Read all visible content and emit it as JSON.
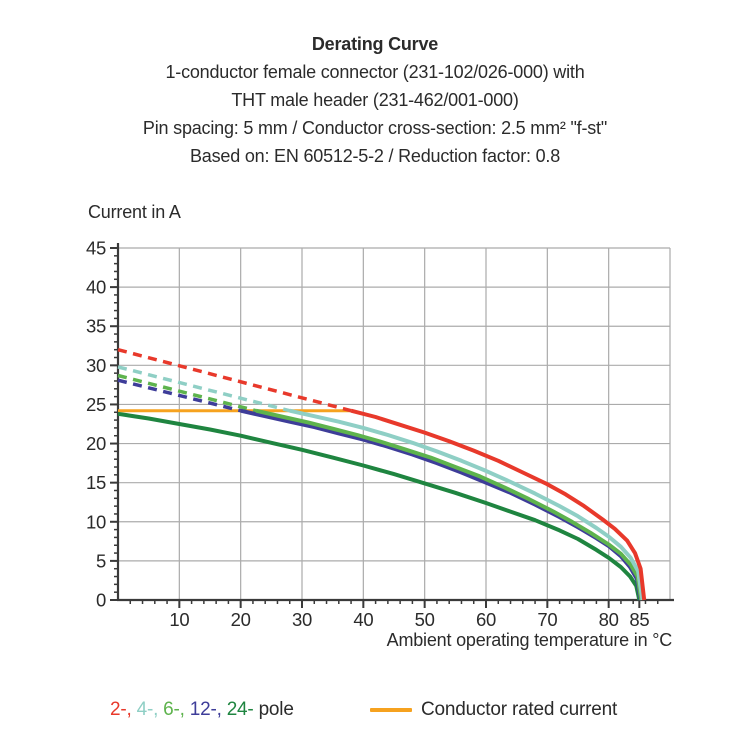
{
  "title": {
    "heading": "Derating Curve",
    "lines": [
      "1-conductor female connector (231-102/026-000) with",
      "THT male header (231-462/001-000)",
      "Pin spacing: 5 mm / Conductor cross-section: 2.5 mm² \"f-st\"",
      "Based on: EN 60512-5-2 / Reduction factor: 0.8"
    ]
  },
  "colors": {
    "red_2pole": "#e8392b",
    "cyan_4pole": "#8fcfc5",
    "lightgreen_6pole": "#5eb34d",
    "darkblue_12pole": "#3e3d99",
    "darkgreen_24pole": "#1f8540",
    "orange_rated": "#f6a21f",
    "grid": "#ababab",
    "axis": "#3a3a3a",
    "text": "#2b2b2b"
  },
  "chart_data": {
    "type": "line",
    "title": "Derating Curve",
    "xlabel": "Ambient operating temperature in °C",
    "ylabel": "Current in A",
    "xlim": [
      0,
      90
    ],
    "ylim": [
      0,
      45
    ],
    "grid": true,
    "x_gridlines": [
      10,
      20,
      30,
      40,
      50,
      60,
      70,
      80,
      90
    ],
    "y_gridlines": [
      5,
      10,
      15,
      20,
      25,
      30,
      35,
      40,
      45
    ],
    "x_major_ticks": [
      10,
      20,
      30,
      40,
      50,
      60,
      70,
      80,
      85
    ],
    "y_major_ticks": [
      0,
      5,
      10,
      15,
      20,
      25,
      30,
      35,
      40,
      45
    ],
    "x_minor_step": 2,
    "y_minor_step": 1,
    "series": [
      {
        "id": "rated-current",
        "name": "Conductor rated current",
        "color": "#f6a21f",
        "style": "solid",
        "width": 3,
        "points": [
          [
            0,
            24.2
          ],
          [
            38,
            24.2
          ]
        ]
      },
      {
        "id": "pole2-dashed",
        "name": "2-pole above rated current",
        "color": "#e8392b",
        "style": "dashed",
        "width": 3.5,
        "points": [
          [
            0,
            32
          ],
          [
            38,
            24.2
          ]
        ]
      },
      {
        "id": "pole4-dashed",
        "name": "4-pole above rated current",
        "color": "#8fcfc5",
        "style": "dashed",
        "width": 3.5,
        "points": [
          [
            0,
            29.8
          ],
          [
            28,
            24.2
          ]
        ]
      },
      {
        "id": "pole6-dashed",
        "name": "6-pole above rated current",
        "color": "#5eb34d",
        "style": "dashed",
        "width": 3.5,
        "points": [
          [
            0,
            28.7
          ],
          [
            22.5,
            24.2
          ]
        ]
      },
      {
        "id": "pole12-dashed",
        "name": "12-pole above rated current",
        "color": "#3e3d99",
        "style": "dashed",
        "width": 3.5,
        "points": [
          [
            0,
            28.1
          ],
          [
            20,
            24.2
          ]
        ]
      },
      {
        "id": "pole24",
        "name": "24-pole",
        "color": "#1f8540",
        "style": "solid",
        "width": 4,
        "points": [
          [
            0,
            23.8
          ],
          [
            5,
            23.2
          ],
          [
            10,
            22.5
          ],
          [
            15,
            21.8
          ],
          [
            20,
            21.0
          ],
          [
            25,
            20.1
          ],
          [
            30,
            19.2
          ],
          [
            35,
            18.2
          ],
          [
            40,
            17.2
          ],
          [
            45,
            16.1
          ],
          [
            50,
            14.9
          ],
          [
            55,
            13.7
          ],
          [
            60,
            12.4
          ],
          [
            64,
            11.3
          ],
          [
            68,
            10.2
          ],
          [
            72,
            8.9
          ],
          [
            75,
            7.8
          ],
          [
            78,
            6.4
          ],
          [
            80,
            5.4
          ],
          [
            82,
            4.2
          ],
          [
            83.5,
            3.0
          ],
          [
            84.5,
            1.8
          ],
          [
            85,
            0
          ]
        ]
      },
      {
        "id": "pole12",
        "name": "12-pole",
        "color": "#3e3d99",
        "style": "solid",
        "width": 4,
        "points": [
          [
            20,
            24.2
          ],
          [
            24,
            23.5
          ],
          [
            28,
            22.8
          ],
          [
            32,
            22.1
          ],
          [
            36,
            21.3
          ],
          [
            40,
            20.5
          ],
          [
            44,
            19.6
          ],
          [
            48,
            18.6
          ],
          [
            52,
            17.5
          ],
          [
            56,
            16.3
          ],
          [
            60,
            15.0
          ],
          [
            64,
            13.7
          ],
          [
            68,
            12.2
          ],
          [
            72,
            10.6
          ],
          [
            75,
            9.3
          ],
          [
            78,
            7.9
          ],
          [
            80,
            6.9
          ],
          [
            82,
            5.6
          ],
          [
            83.5,
            4.2
          ],
          [
            84.6,
            2.7
          ],
          [
            85.2,
            0
          ]
        ]
      },
      {
        "id": "pole6",
        "name": "6-pole",
        "color": "#5eb34d",
        "style": "solid",
        "width": 4,
        "points": [
          [
            22.5,
            24.2
          ],
          [
            27,
            23.4
          ],
          [
            31,
            22.7
          ],
          [
            35,
            21.9
          ],
          [
            39,
            21.1
          ],
          [
            43,
            20.2
          ],
          [
            47,
            19.2
          ],
          [
            51,
            18.2
          ],
          [
            55,
            17.0
          ],
          [
            59,
            15.8
          ],
          [
            63,
            14.4
          ],
          [
            67,
            12.9
          ],
          [
            71,
            11.3
          ],
          [
            74,
            10.0
          ],
          [
            77,
            8.6
          ],
          [
            80,
            7.1
          ],
          [
            82,
            5.9
          ],
          [
            83.6,
            4.5
          ],
          [
            84.7,
            3.0
          ],
          [
            85.3,
            0
          ]
        ]
      },
      {
        "id": "pole4",
        "name": "4-pole",
        "color": "#8fcfc5",
        "style": "solid",
        "width": 4,
        "points": [
          [
            28,
            24.2
          ],
          [
            32,
            23.5
          ],
          [
            36,
            22.8
          ],
          [
            40,
            22.0
          ],
          [
            44,
            21.1
          ],
          [
            48,
            20.1
          ],
          [
            52,
            19.0
          ],
          [
            56,
            17.8
          ],
          [
            60,
            16.5
          ],
          [
            64,
            15.1
          ],
          [
            68,
            13.6
          ],
          [
            72,
            12.0
          ],
          [
            75,
            10.7
          ],
          [
            78,
            9.2
          ],
          [
            80,
            8.1
          ],
          [
            82,
            6.8
          ],
          [
            83.6,
            5.4
          ],
          [
            84.8,
            3.7
          ],
          [
            85.5,
            0
          ]
        ]
      },
      {
        "id": "pole2",
        "name": "2-pole",
        "color": "#e8392b",
        "style": "solid",
        "width": 4,
        "points": [
          [
            38,
            24.2
          ],
          [
            42,
            23.4
          ],
          [
            46,
            22.4
          ],
          [
            50,
            21.4
          ],
          [
            54,
            20.3
          ],
          [
            58,
            19.1
          ],
          [
            62,
            17.8
          ],
          [
            66,
            16.3
          ],
          [
            70,
            14.8
          ],
          [
            73,
            13.5
          ],
          [
            76,
            12.0
          ],
          [
            79,
            10.3
          ],
          [
            81,
            9.1
          ],
          [
            83,
            7.6
          ],
          [
            84.3,
            6.0
          ],
          [
            85.2,
            4.0
          ],
          [
            85.8,
            0
          ]
        ]
      }
    ]
  },
  "legend": {
    "pole_items": [
      {
        "label": "2-,",
        "color": "#e8392b"
      },
      {
        "label": "4-,",
        "color": "#8fcfc5"
      },
      {
        "label": "6-,",
        "color": "#5eb34d"
      },
      {
        "label": "12-,",
        "color": "#3e3d99"
      },
      {
        "label": "24-",
        "color": "#1f8540"
      }
    ],
    "pole_suffix": "pole",
    "rated_label": "Conductor rated current",
    "rated_color": "#f6a21f"
  }
}
